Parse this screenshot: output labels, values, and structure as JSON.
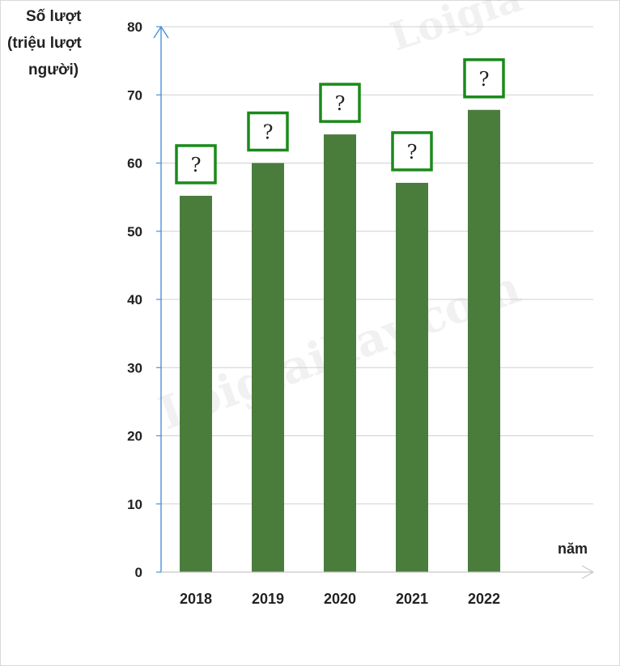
{
  "chart_data": {
    "type": "bar",
    "ylabel_lines": [
      "Số lượt",
      "(triệu lượt",
      "người)"
    ],
    "xlabel": "năm",
    "categories": [
      "2018",
      "2019",
      "2020",
      "2021",
      "2022"
    ],
    "values": [
      55.2,
      60.0,
      64.2,
      57.1,
      67.8
    ],
    "data_labels": [
      "?",
      "?",
      "?",
      "?",
      "?"
    ],
    "ylim": [
      0,
      80
    ],
    "yticks": [
      0,
      10,
      20,
      30,
      40,
      50,
      60,
      70,
      80
    ],
    "grid": true,
    "colors": {
      "bar": "#4a7c3c",
      "label_border": "#1a8a1a",
      "axis": "#4a90d9",
      "grid": "#d0d0d0"
    }
  },
  "watermarks": [
    "Loigiaihay.com",
    "Loigia"
  ]
}
